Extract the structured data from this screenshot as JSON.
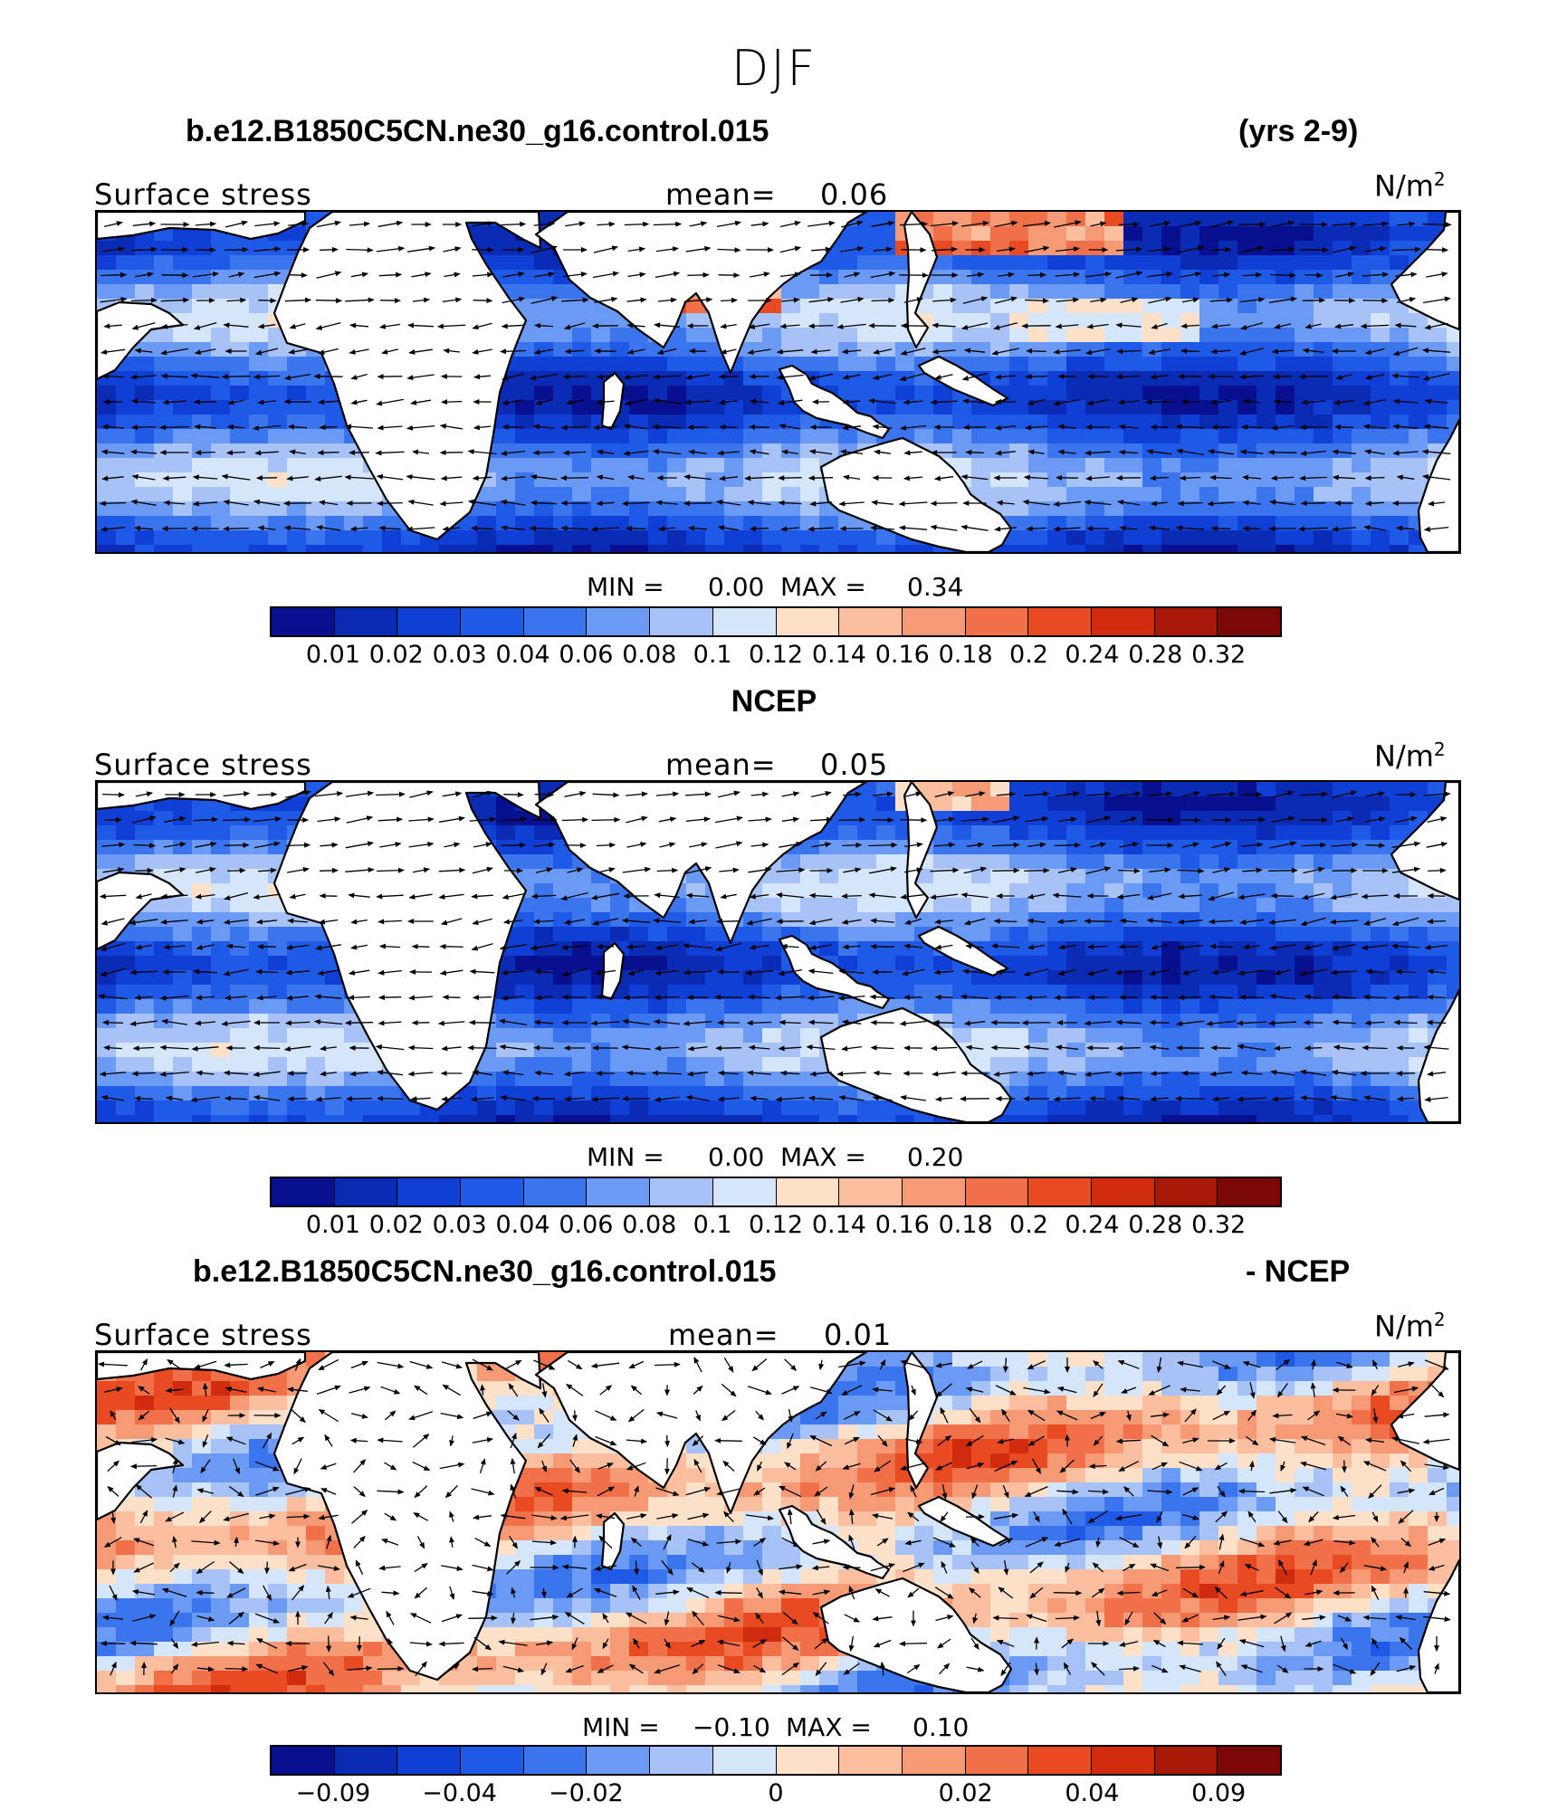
{
  "title": "DJF",
  "colors": {
    "scale": [
      "#08108f",
      "#0a2bb4",
      "#0f3fd4",
      "#1f5ae6",
      "#3b75ee",
      "#6b9af4",
      "#a6c2f6",
      "#d6e6fa",
      "#fde0c8",
      "#fbbf9f",
      "#f59a75",
      "#f07049",
      "#e84a22",
      "#d02b0c",
      "#a81a08",
      "#7a0806"
    ],
    "land": "#ffffff",
    "coast": "#000000",
    "vector": "#000000"
  },
  "panels": [
    {
      "title_left": "b.e12.B1850C5CN.ne30_g16.control.015",
      "title_right": "(yrs 2-9)",
      "variable": "Surface stress",
      "mean_label": "mean=",
      "mean_value": "0.06",
      "units": "N/m",
      "units_sup": "2",
      "min_label": "MIN =",
      "min_value": "0.00",
      "max_label": "MAX =",
      "max_value": "0.34",
      "ticks": [
        "0.01",
        "0.02",
        "0.03",
        "0.04",
        "0.06",
        "0.08",
        "0.1",
        "0.12",
        "0.14",
        "0.16",
        "0.18",
        "0.2",
        "0.24",
        "0.28",
        "0.32"
      ],
      "field": "model"
    },
    {
      "title_left": "",
      "title_center": "NCEP",
      "title_right": "",
      "variable": "Surface stress",
      "mean_label": "mean=",
      "mean_value": "0.05",
      "units": "N/m",
      "units_sup": "2",
      "min_label": "MIN =",
      "min_value": "0.00",
      "max_label": "MAX =",
      "max_value": "0.20",
      "ticks": [
        "0.01",
        "0.02",
        "0.03",
        "0.04",
        "0.06",
        "0.08",
        "0.1",
        "0.12",
        "0.14",
        "0.16",
        "0.18",
        "0.2",
        "0.24",
        "0.28",
        "0.32"
      ],
      "field": "obs"
    },
    {
      "title_left": "b.e12.B1850C5CN.ne30_g16.control.015",
      "title_right": "- NCEP",
      "variable": "Surface stress",
      "mean_label": "mean=",
      "mean_value": "0.01",
      "units": "N/m",
      "units_sup": "2",
      "min_label": "MIN =",
      "min_value": "−0.10",
      "max_label": "MAX =",
      "max_value": "0.10",
      "ticks": [
        "−0.09",
        "−0.04",
        "−0.02",
        "0",
        "0.02",
        "0.04",
        "0.09"
      ],
      "field": "diff"
    }
  ]
}
